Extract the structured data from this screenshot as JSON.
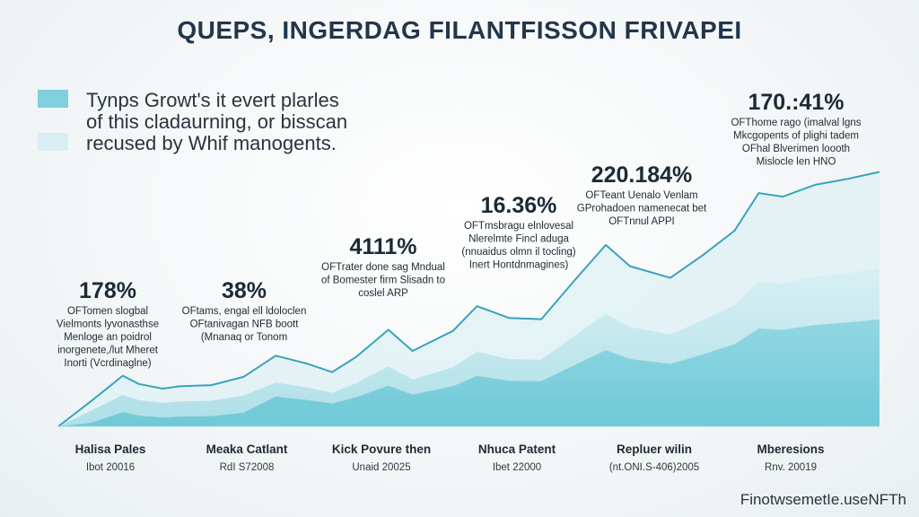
{
  "chart_data": {
    "type": "area",
    "title": "QUEPS, INGERDAG FILANTFISSON FRIVAPEI",
    "legend": {
      "placement": "top-left",
      "lines": [
        "Tynps Growt's it evert plarles",
        "of this cladaurning, or bisscan",
        "recused by Whif manogents."
      ],
      "swatch_colors": [
        "#7fcfdc",
        "#d9eef2"
      ]
    },
    "colors": {
      "line": "#3aa3bc",
      "area_dark": "#7fd0dd",
      "area_mid": "#bfe5ec",
      "area_light": "#e1f1f4"
    },
    "grid": false,
    "categories": [
      {
        "label": "Halisa Pales",
        "sub": "Ibot 20016"
      },
      {
        "label": "Meaka Catlant",
        "sub": "RdI S72008"
      },
      {
        "label": "Kick Povure then",
        "sub": "Unaid 20025"
      },
      {
        "label": "Nhuca Patent",
        "sub": "Ibet 22000"
      },
      {
        "label": "Repluer wilin",
        "sub": "(nt.ONI.S-406)2005"
      },
      {
        "label": "Mberesions",
        "sub": "Rnv. 20019"
      }
    ],
    "annotations": [
      {
        "value": "178%",
        "note": [
          "OFTomen slogbal",
          "Vielmonts lyvonasthse",
          "Menloge an poidrol",
          "inorgenete,/lut Mheret",
          "Inorti (Vcrdinaglne)"
        ]
      },
      {
        "value": "38%",
        "note": [
          "OFtams, engal ell ldoloclen",
          "OFtanivagan NFB boott",
          "(Mnanaq or Tonom"
        ]
      },
      {
        "value": "4111%",
        "note": [
          "OFTrater done sag Mndual",
          "of Bomester firm Slisadn to",
          "coslel ARP"
        ]
      },
      {
        "value": "16.36%",
        "note": [
          "OFTmsbragu elnlovesal",
          "Nlerelmte Fincl aduga",
          "(nnuaidus olmn il tocling)",
          "Inert Hontdnmagines)"
        ]
      },
      {
        "value": "220.184%",
        "note": [
          "OFTeant Uenalo Venlam",
          "GProhadoen namenecat bet",
          "OFTnnul APPI"
        ]
      },
      {
        "value": "170.:41%",
        "note": [
          "OFThome rago (imalval lgns",
          "Mkcgopents of plighi tadem",
          "OFhal Blverimen loooth",
          "Mislocle len HNO"
        ]
      }
    ],
    "footer_brand": "FinotwsemetIe.useNFTh",
    "series": [
      {
        "name": "",
        "x": [
          0,
          0.4,
          0.8,
          1.0,
          1.3,
          1.5,
          1.9,
          2.3,
          2.7,
          3.1,
          3.4,
          3.7,
          4.1,
          4.4,
          4.9,
          5.2,
          5.6,
          6.0,
          6.4,
          6.8,
          7.1,
          7.6,
          8.0,
          8.4,
          8.7,
          9.0,
          9.4,
          9.8,
          10.2
        ],
        "y": [
          0,
          2.1,
          4.3,
          3.6,
          3.2,
          3.4,
          3.5,
          4.2,
          6.0,
          5.3,
          4.6,
          5.9,
          8.2,
          6.4,
          8.1,
          10.2,
          9.2,
          9.1,
          12.3,
          15.4,
          13.6,
          12.6,
          14.5,
          16.6,
          19.8,
          19.5,
          20.5,
          21.0,
          21.6
        ]
      }
    ],
    "xlim": [
      0,
      10.2
    ],
    "ylim": [
      0,
      24
    ]
  }
}
